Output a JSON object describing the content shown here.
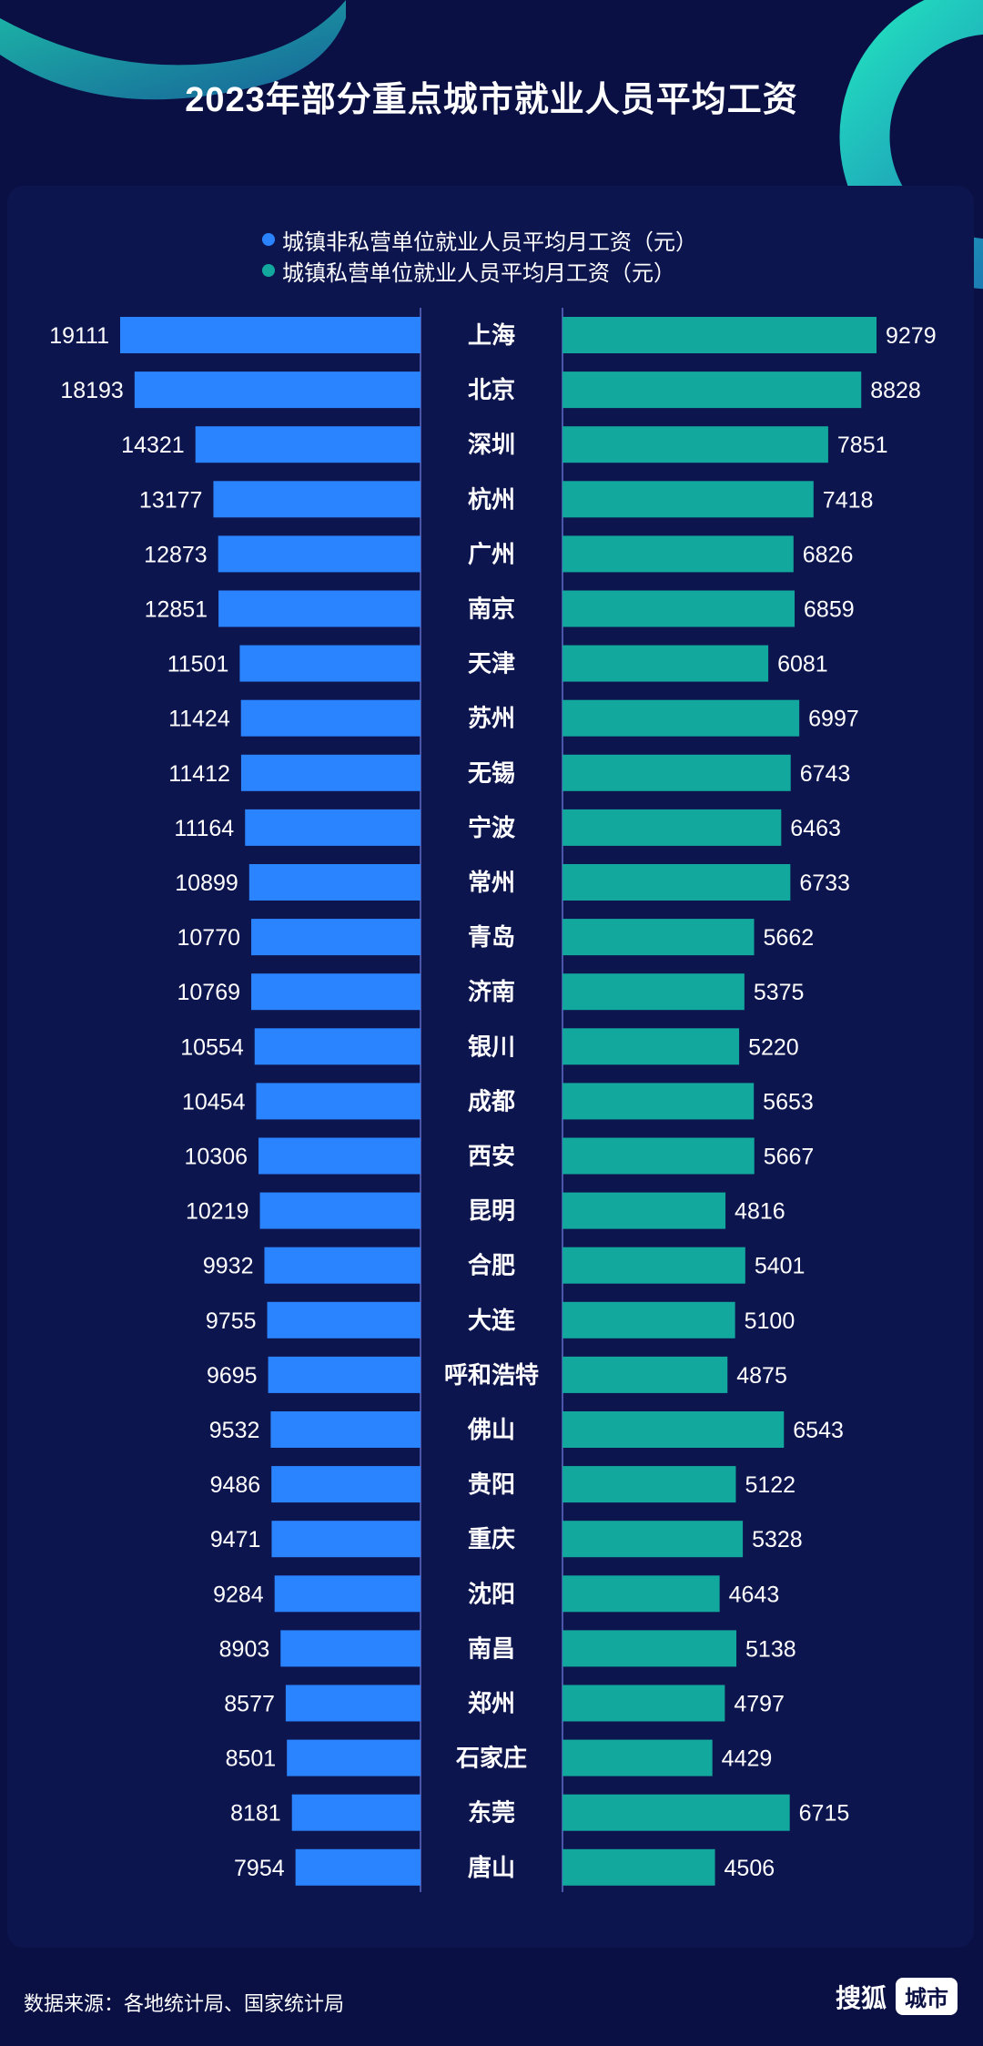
{
  "title": "2023年部分重点城市就业人员平均工资",
  "legend": [
    {
      "label": "城镇非私营单位就业人员平均月工资（元）",
      "color": "#2b84ff"
    },
    {
      "label": "城镇私营单位就业人员平均月工资（元）",
      "color": "#13a89e"
    }
  ],
  "chart_data": {
    "type": "bar",
    "orientation": "horizontal-butterfly",
    "categories": [
      "上海",
      "北京",
      "深圳",
      "杭州",
      "广州",
      "南京",
      "天津",
      "苏州",
      "无锡",
      "宁波",
      "常州",
      "青岛",
      "济南",
      "银川",
      "成都",
      "西安",
      "昆明",
      "合肥",
      "大连",
      "呼和浩特",
      "佛山",
      "贵阳",
      "重庆",
      "沈阳",
      "南昌",
      "郑州",
      "石家庄",
      "东莞",
      "唐山"
    ],
    "series": [
      {
        "name": "城镇非私营单位就业人员平均月工资（元）",
        "color": "#2b84ff",
        "values": [
          19111,
          18193,
          14321,
          13177,
          12873,
          12851,
          11501,
          11424,
          11412,
          11164,
          10899,
          10770,
          10769,
          10554,
          10454,
          10306,
          10219,
          9932,
          9755,
          9695,
          9532,
          9486,
          9471,
          9284,
          8903,
          8577,
          8501,
          8181,
          7954
        ]
      },
      {
        "name": "城镇私营单位就业人员平均月工资（元）",
        "color": "#13a89e",
        "values": [
          9279,
          8828,
          7851,
          7418,
          6826,
          6859,
          6081,
          6997,
          6743,
          6463,
          6733,
          5662,
          5375,
          5220,
          5653,
          5667,
          4816,
          5401,
          5100,
          4875,
          6543,
          5122,
          5328,
          4643,
          5138,
          4797,
          4429,
          6715,
          4506
        ]
      }
    ]
  },
  "footer": {
    "source": "数据来源：各地统计局、国家统计局",
    "brand": "搜狐",
    "badge": "城市"
  }
}
